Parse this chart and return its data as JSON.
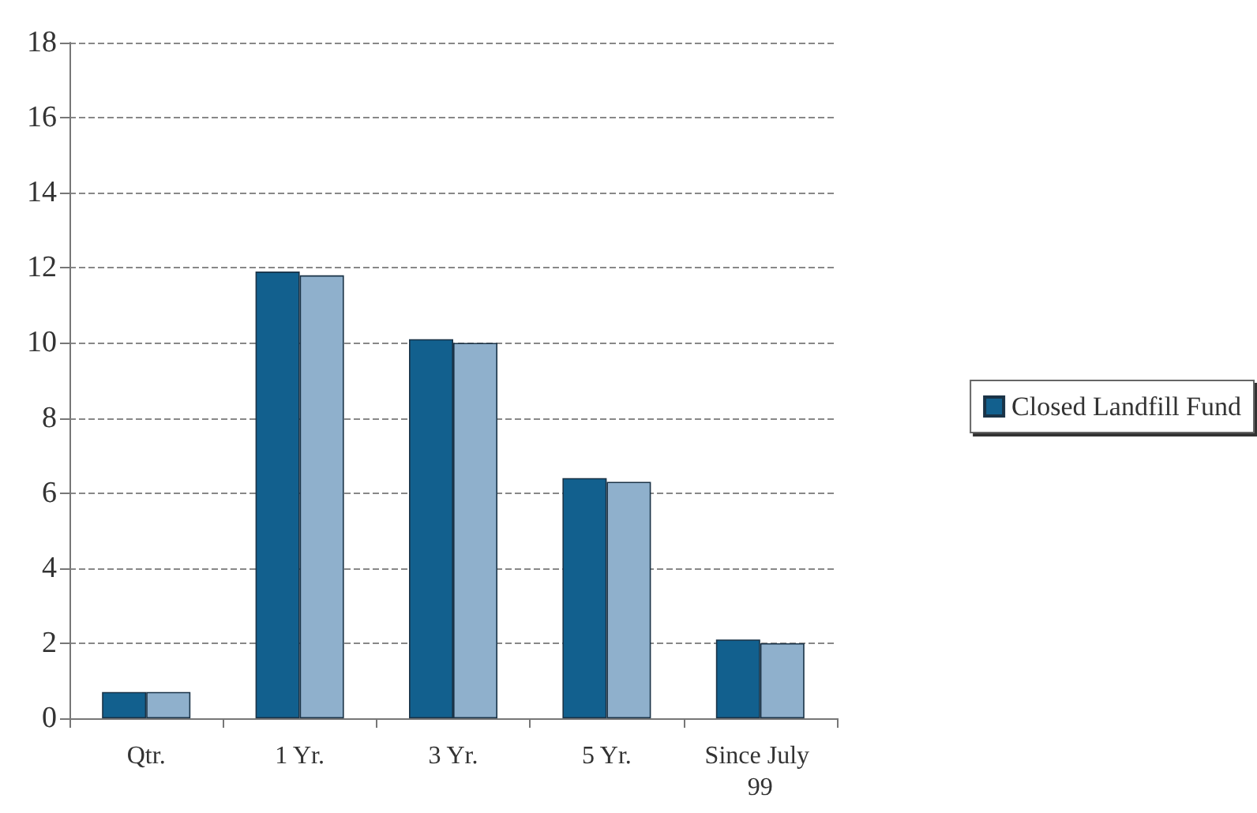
{
  "chart_data": {
    "type": "bar",
    "categories": [
      "Qtr.",
      "1 Yr.",
      "3 Yr.",
      "5 Yr.",
      "Since July 99"
    ],
    "series": [
      {
        "name": "Closed Landfill Fund",
        "color": "#12608e",
        "values": [
          0.7,
          11.9,
          10.1,
          6.4,
          2.1
        ]
      },
      {
        "color": "#8fb0cc",
        "values": [
          0.7,
          11.8,
          10.0,
          6.3,
          2.0
        ]
      }
    ],
    "ylim": [
      0,
      18
    ],
    "yticks": [
      0,
      2,
      4,
      6,
      8,
      10,
      12,
      14,
      16,
      18
    ],
    "grid": "y",
    "legend": "right"
  }
}
